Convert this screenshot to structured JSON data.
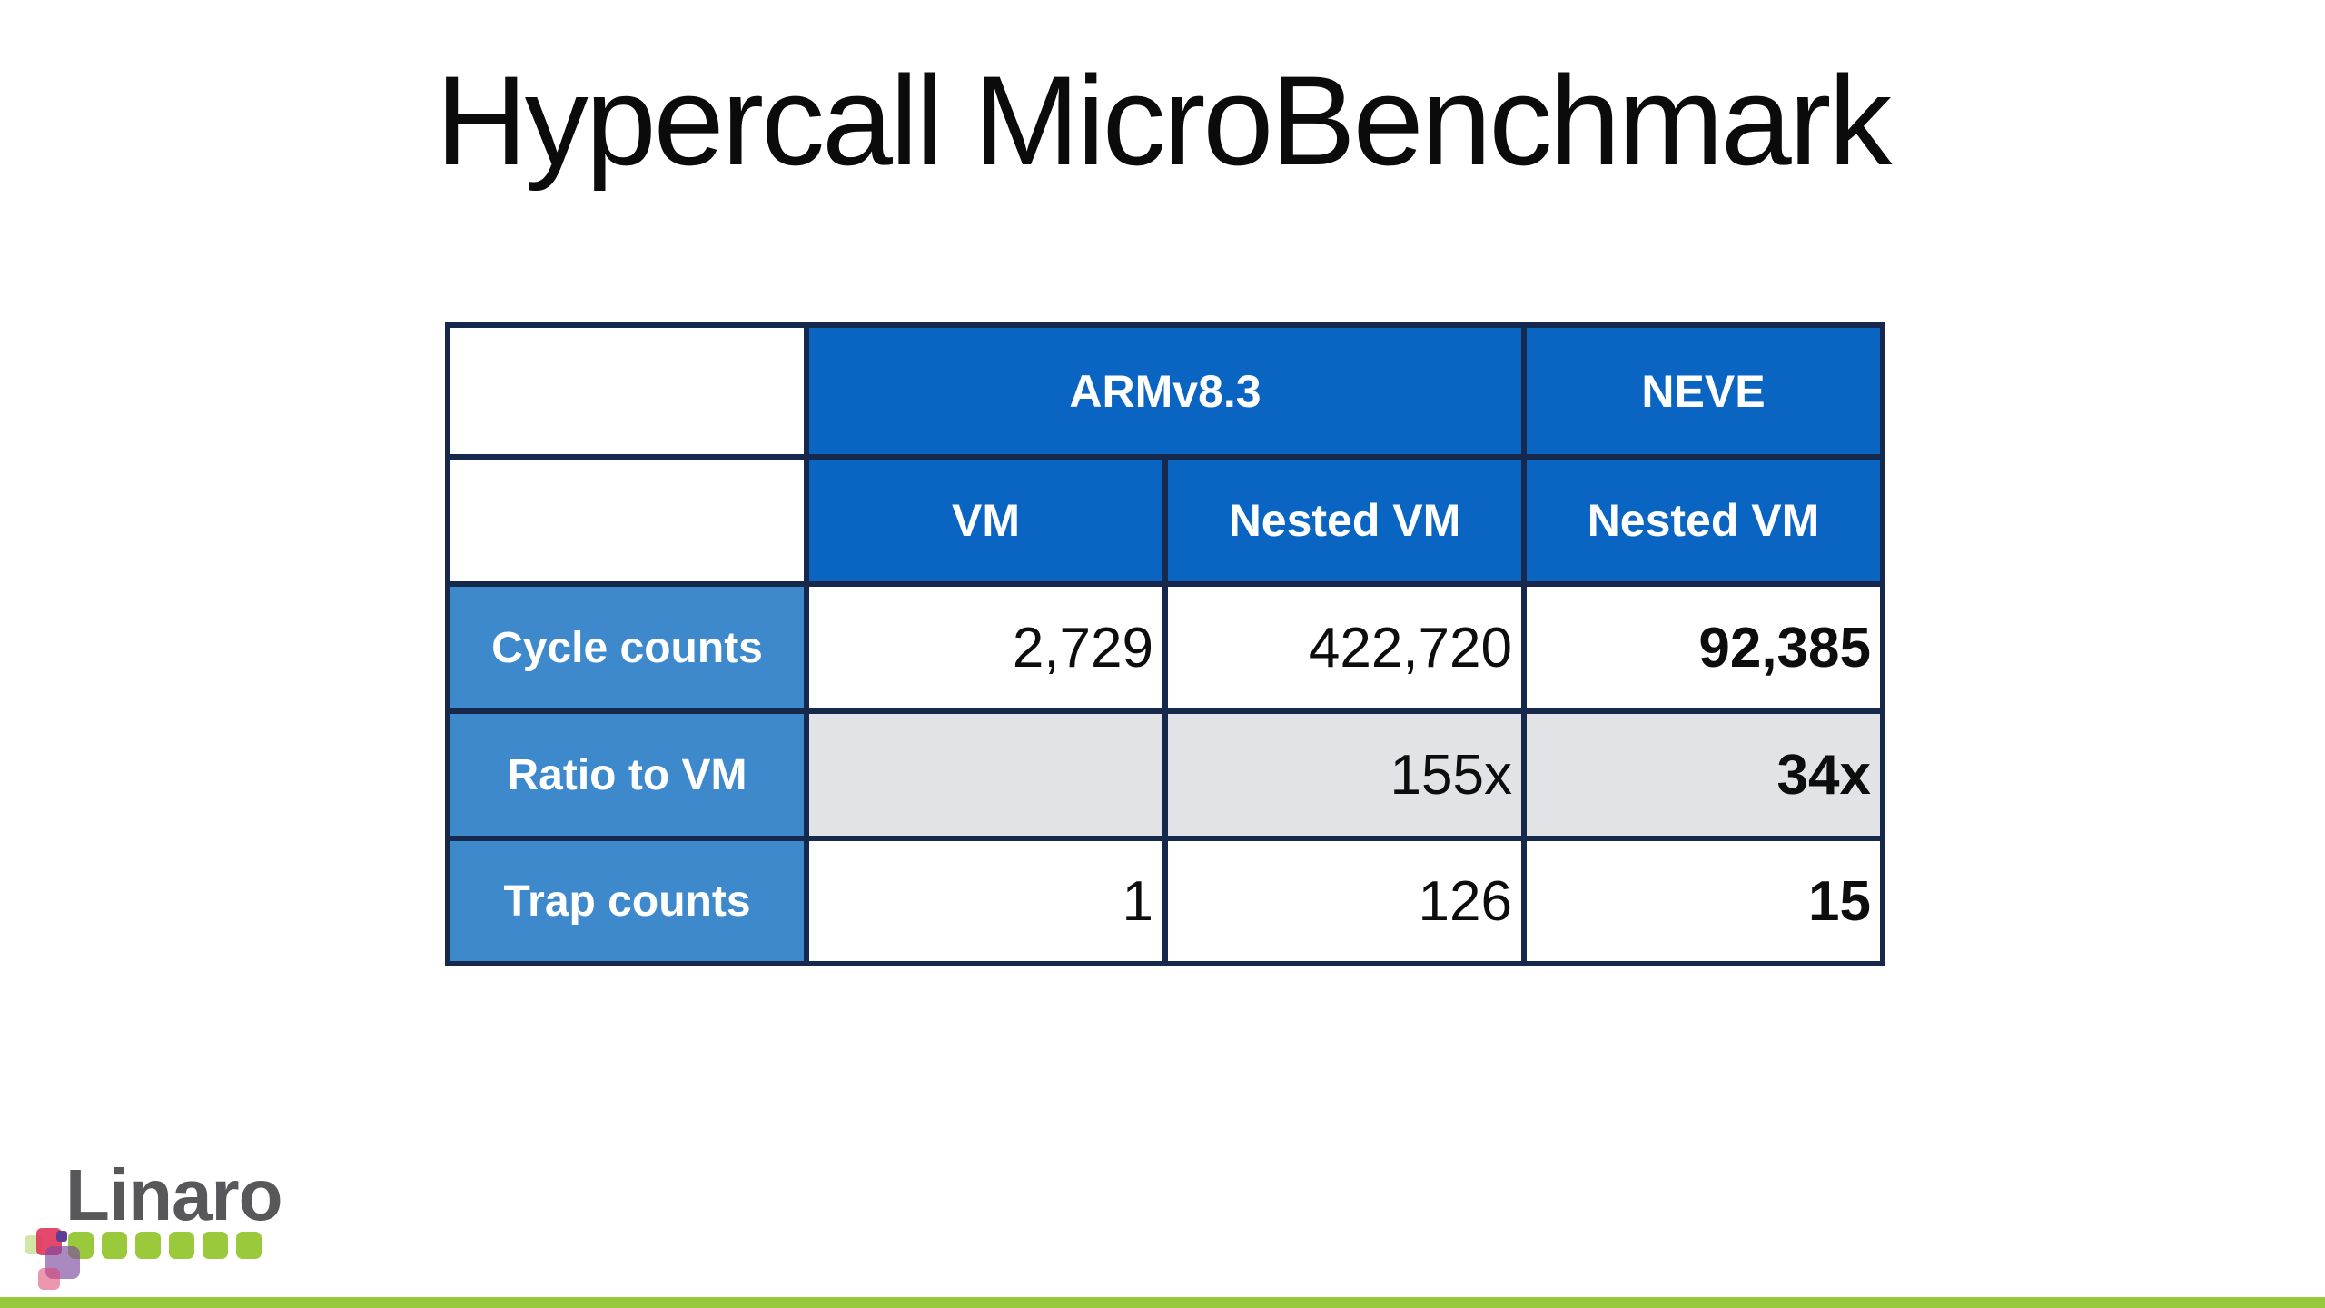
{
  "title": "Hypercall MicroBenchmark",
  "table": {
    "col_groups": [
      {
        "label": "ARMv8.3",
        "span": 2
      },
      {
        "label": "NEVE",
        "span": 1
      }
    ],
    "col_headers": [
      "VM",
      "Nested VM",
      "Nested VM"
    ],
    "rows": [
      {
        "label": "Cycle counts",
        "values": [
          "2,729",
          "422,720",
          "92,385"
        ],
        "shaded": false
      },
      {
        "label": "Ratio to VM",
        "values": [
          "",
          "155x",
          "34x"
        ],
        "shaded": true
      },
      {
        "label": "Trap counts",
        "values": [
          "1",
          "126",
          "15"
        ],
        "shaded": false
      }
    ]
  },
  "chart_data": {
    "type": "table",
    "title": "Hypercall MicroBenchmark",
    "column_groups": [
      "ARMv8.3",
      "ARMv8.3",
      "NEVE"
    ],
    "columns": [
      "VM",
      "Nested VM",
      "Nested VM"
    ],
    "row_labels": [
      "Cycle counts",
      "Ratio to VM",
      "Trap counts"
    ],
    "cells": [
      [
        "2,729",
        "422,720",
        "92,385"
      ],
      [
        "",
        "155x",
        "34x"
      ],
      [
        "1",
        "126",
        "15"
      ]
    ]
  },
  "footer": {
    "logo_text": "Linaro"
  },
  "colors": {
    "title_black": "#0b0b0b",
    "header_blue": "#0a64c2",
    "rowhead_blue": "#3e88cc",
    "shaded_gray": "#e2e3e6",
    "border_navy": "#16294d",
    "border_black": "#0a0a0a",
    "bar_green": "#97c83e",
    "logo_gray": "#58585b",
    "logo_lime": "#9aca3c",
    "logo_magenta": "#e23a5f",
    "logo_purple": "#7c4a9e",
    "logo_pink": "#de406e"
  }
}
